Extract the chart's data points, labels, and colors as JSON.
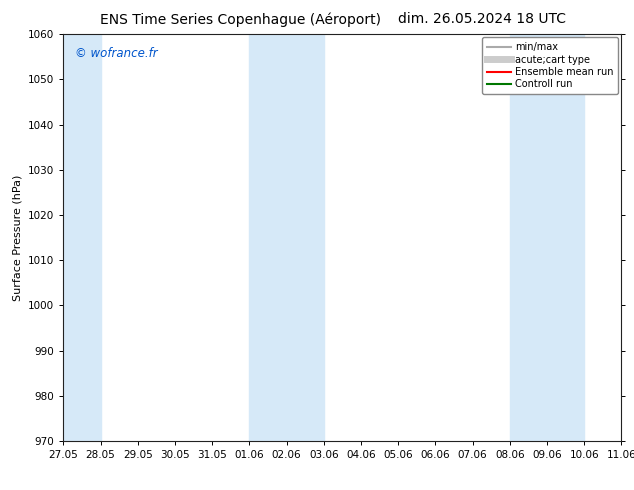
{
  "title_left": "ENS Time Series Copenhague (Aéroport)",
  "title_right": "dim. 26.05.2024 18 UTC",
  "ylabel": "Surface Pressure (hPa)",
  "ylim": [
    970,
    1060
  ],
  "yticks": [
    970,
    980,
    990,
    1000,
    1010,
    1020,
    1030,
    1040,
    1050,
    1060
  ],
  "xtick_labels": [
    "27.05",
    "28.05",
    "29.05",
    "30.05",
    "31.05",
    "01.06",
    "02.06",
    "03.06",
    "04.06",
    "05.06",
    "06.06",
    "07.06",
    "08.06",
    "09.06",
    "10.06",
    "11.06"
  ],
  "shaded_label_regions": [
    [
      "27.05",
      "28.05"
    ],
    [
      "01.06",
      "03.06"
    ],
    [
      "08.06",
      "10.06"
    ]
  ],
  "shaded_color": "#d6e9f8",
  "watermark_text": "© wofrance.fr",
  "watermark_color": "#0055cc",
  "legend_entries": [
    {
      "label": "min/max",
      "color": "#aaaaaa",
      "lw": 1.5
    },
    {
      "label": "acute;cart type",
      "color": "#cccccc",
      "lw": 5
    },
    {
      "label": "Ensemble mean run",
      "color": "#ff0000",
      "lw": 1.5
    },
    {
      "label": "Controll run",
      "color": "#007700",
      "lw": 1.5
    }
  ],
  "background_color": "#ffffff",
  "grid_color": "#cccccc",
  "title_fontsize": 10,
  "axis_label_fontsize": 8,
  "tick_fontsize": 7.5,
  "legend_fontsize": 7
}
